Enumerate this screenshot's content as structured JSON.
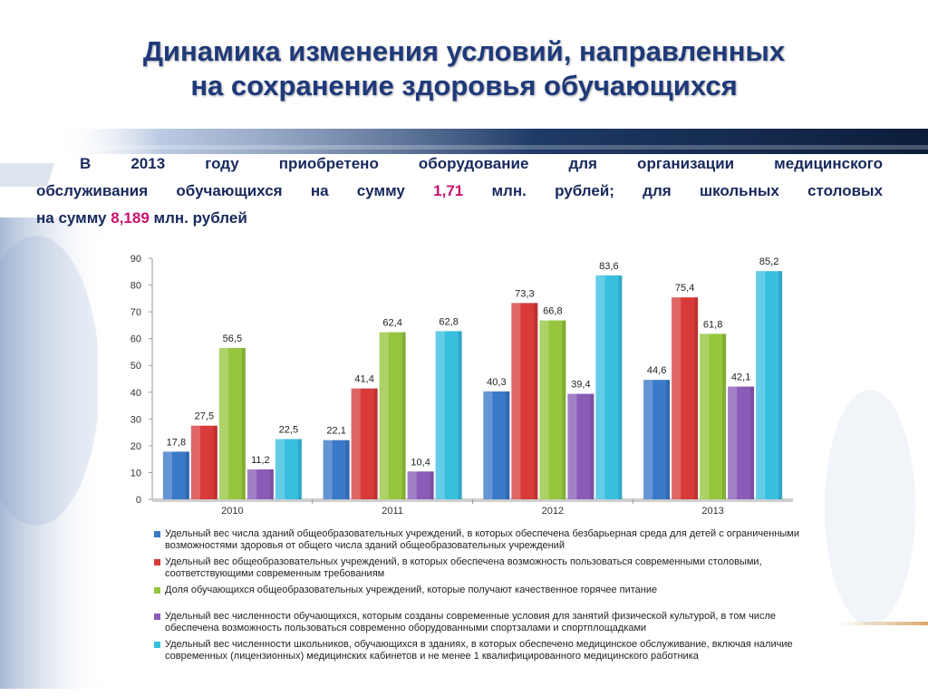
{
  "title": {
    "line1": "Динамика изменения условий, направленных",
    "line2": "на сохранение здоровья обучающихся"
  },
  "intro": {
    "line1": "В 2013 году приобретено оборудование для организации медицинского",
    "line2_pre": "обслуживания обучающихся на сумму ",
    "value1": "1,71",
    "line2_post": " млн. рублей; для школьных столовых",
    "line3_pre": "на сумму ",
    "value2": "8,189",
    "line3_post": " млн. рублей"
  },
  "colors": {
    "title": "#1f3a7a",
    "intro_text": "#17295c",
    "highlight": "#c8106e"
  },
  "chart_data": {
    "type": "bar",
    "categories": [
      "2010",
      "2011",
      "2012",
      "2013"
    ],
    "ylim": [
      0,
      90
    ],
    "yticks": [
      0,
      10,
      20,
      30,
      40,
      50,
      60,
      70,
      80,
      90
    ],
    "series": [
      {
        "name": "Удельный вес числа зданий общеобразовательных учреждений, в которых обеспечена безбарьерная среда для детей с ограниченными возможностями здоровья от общего числа зданий общеобразовательных учреждений",
        "color": "#3a78c8",
        "values": [
          17.8,
          22.1,
          40.3,
          44.6
        ],
        "labels": [
          "17,8",
          "22,1",
          "40,3",
          "44,6"
        ]
      },
      {
        "name": "Удельный вес общеобразовательных учреждений, в которых обеспечена возможность пользоваться современными столовыми, соответствующими современным требованиям",
        "color": "#d83a3a",
        "values": [
          27.5,
          41.4,
          73.3,
          75.4
        ],
        "labels": [
          "27,5",
          "41,4",
          "73,3",
          "75,4"
        ]
      },
      {
        "name": "Доля обучающихся общеобразовательных учреждений, которые получают качественное горячее питание",
        "color": "#96c63e",
        "values": [
          56.5,
          62.4,
          66.8,
          61.8
        ],
        "labels": [
          "56,5",
          "62,4",
          "66,8",
          "61,8"
        ]
      },
      {
        "name": "Удельный вес численности обучающихся, которым созданы современные условия для занятий физической культурой, в том числе обеспечена возможность пользоваться современно оборудованными спортзалами и спортплощадками",
        "color": "#8a5cb8",
        "values": [
          11.2,
          10.4,
          39.4,
          42.1
        ],
        "labels": [
          "11,2",
          "10,4",
          "39,4",
          "42,1"
        ]
      },
      {
        "name": "Удельный вес численности школьников, обучающихся в зданиях, в которых обеспечено медицинское обслуживание, включая наличие современных (лицензионных) медицинских кабинетов и не менее 1 квалифицированного медицинского работника",
        "color": "#38bfe0",
        "values": [
          22.5,
          62.8,
          83.6,
          85.2
        ],
        "labels": [
          "22,5",
          "62,8",
          "83,6",
          "85,2"
        ]
      }
    ]
  }
}
